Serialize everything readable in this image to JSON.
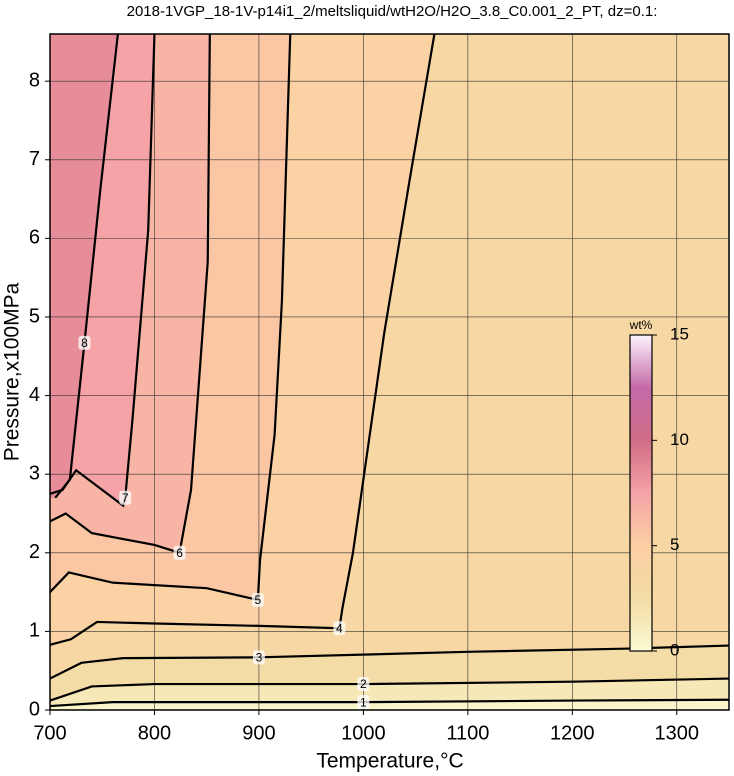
{
  "chart_data": {
    "type": "contour",
    "title": "2018-1VGP_18-1V-p14i1_2/meltsliquid/wtH2O/H2O_3.8_C0.001_2_PT, dz=0.1:",
    "xlabel": "Temperature,°C",
    "ylabel": "Pressure,x100MPa",
    "xlim": [
      700,
      1350
    ],
    "xticks": [
      700,
      800,
      900,
      1000,
      1100,
      1200,
      1300
    ],
    "ylim": [
      0,
      8.6
    ],
    "yticks": [
      0,
      1,
      2,
      3,
      4,
      5,
      6,
      7,
      8
    ],
    "grid": true,
    "line_color": "#000000",
    "colorbar": {
      "label": "wt%",
      "clim": [
        0,
        15
      ],
      "ticks": [
        0,
        5,
        10,
        15
      ],
      "colormap": [
        "#fafad2",
        "#f3dca5",
        "#fdcfa3",
        "#f5a3a6",
        "#d06c86",
        "#c46aa8",
        "#fdf3fd"
      ]
    },
    "series": [
      {
        "level": 1,
        "x": [
          700,
          760,
          800,
          1000,
          1200,
          1350
        ],
        "y": [
          0.05,
          0.1,
          0.1,
          0.1,
          0.12,
          0.13
        ]
      },
      {
        "level": 2,
        "x": [
          700,
          740,
          800,
          1000,
          1200,
          1350
        ],
        "y": [
          0.12,
          0.3,
          0.33,
          0.33,
          0.36,
          0.4
        ]
      },
      {
        "level": 3,
        "x": [
          700,
          730,
          770,
          900,
          1100,
          1250,
          1350
        ],
        "y": [
          0.4,
          0.6,
          0.66,
          0.67,
          0.74,
          0.78,
          0.82
        ]
      },
      {
        "level": 4,
        "x": [
          700,
          720,
          745,
          800,
          900,
          977,
          980,
          990,
          1020,
          1045,
          1068
        ],
        "y": [
          0.83,
          0.9,
          1.12,
          1.1,
          1.07,
          1.04,
          1.3,
          2.0,
          4.8,
          6.8,
          8.6
        ]
      },
      {
        "level": 5,
        "x": [
          700,
          718,
          760,
          850,
          899,
          901,
          915,
          922,
          930
        ],
        "y": [
          1.5,
          1.75,
          1.62,
          1.55,
          1.4,
          1.9,
          3.5,
          5.2,
          8.6
        ]
      },
      {
        "level": 6,
        "x": [
          700,
          715,
          740,
          800,
          824,
          835,
          851,
          853
        ],
        "y": [
          2.4,
          2.5,
          2.25,
          2.1,
          2.0,
          2.8,
          5.7,
          8.6
        ]
      },
      {
        "level": 7,
        "x": [
          700,
          712,
          725,
          770,
          772,
          779,
          794,
          800
        ],
        "y": [
          2.75,
          2.8,
          3.05,
          2.6,
          2.7,
          3.7,
          6.1,
          8.6
        ]
      },
      {
        "level": 8,
        "x": [
          705,
          719,
          733,
          748,
          765
        ],
        "y": [
          2.7,
          2.93,
          4.67,
          6.6,
          8.6
        ]
      }
    ]
  }
}
